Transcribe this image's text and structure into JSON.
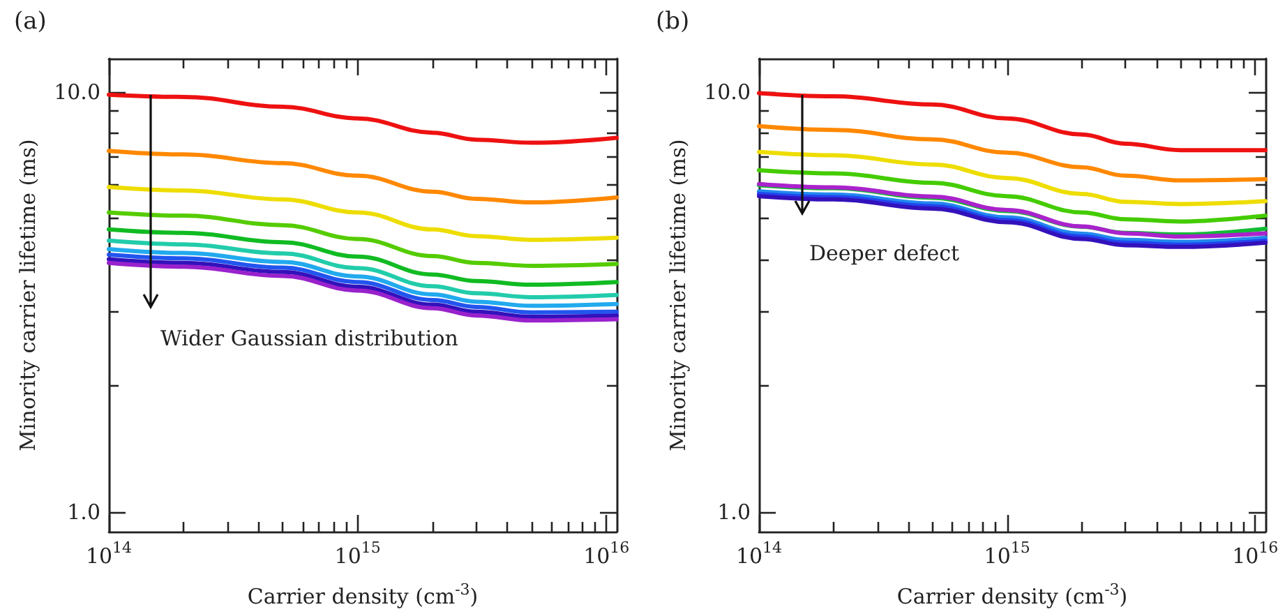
{
  "chart_data": [
    {
      "type": "line",
      "title": "(a)",
      "xlabel": "Carrier density (cm$^{-3}$)",
      "ylabel": "Minority carrier lifetime (ms)",
      "log": "xy",
      "marker": "none",
      "annotations": [
        "Wider Gaussian distribution"
      ],
      "xlim": [
        100000000000000.0,
        1.1e+16
      ],
      "ylim": [
        0.9,
        12
      ],
      "xticks": [
        {
          "value": 100000000000000.0,
          "label": "10$^{14}$"
        },
        {
          "value": 200000000000000.0,
          "label": null
        },
        {
          "value": 300000000000000.0,
          "label": null
        },
        {
          "value": 400000000000000.0,
          "label": null
        },
        {
          "value": 500000000000000.0,
          "label": null
        },
        {
          "value": 600000000000000.0,
          "label": null
        },
        {
          "value": 700000000000000.0,
          "label": null
        },
        {
          "value": 800000000000000.0,
          "label": null
        },
        {
          "value": 900000000000000.0,
          "label": null
        },
        {
          "value": 1000000000000000.0,
          "label": "10$^{15}$"
        },
        {
          "value": 2000000000000000.0,
          "label": null
        },
        {
          "value": 3000000000000000.0,
          "label": null
        },
        {
          "value": 4000000000000000.0,
          "label": null
        },
        {
          "value": 5000000000000000.0,
          "label": null
        },
        {
          "value": 6000000000000000.0,
          "label": null
        },
        {
          "value": 7000000000000000.0,
          "label": null
        },
        {
          "value": 8000000000000000.0,
          "label": null
        },
        {
          "value": 9000000000000000.0,
          "label": null
        },
        {
          "value": 1e+16,
          "label": "10$^{16}$"
        }
      ],
      "yticks": [
        {
          "value": 1,
          "label": "1.0"
        },
        {
          "value": 2,
          "label": null
        },
        {
          "value": 3,
          "label": null
        },
        {
          "value": 4,
          "label": null
        },
        {
          "value": 5,
          "label": null
        },
        {
          "value": 6,
          "label": null
        },
        {
          "value": 7,
          "label": null
        },
        {
          "value": 8,
          "label": null
        },
        {
          "value": 9,
          "label": null
        },
        {
          "value": 10,
          "label": "10.0"
        }
      ],
      "x": [
        100000000000000.0,
        200000000000000.0,
        500000000000000.0,
        1000000000000000.0,
        2000000000000000.0,
        3000000000000000.0,
        5000000000000000.0,
        1.1e+16
      ],
      "series": [
        {
          "color": "#ee1111",
          "values": [
            9.85,
            9.73,
            9.22,
            8.65,
            8.0,
            7.7,
            7.57,
            7.78
          ]
        },
        {
          "color": "#ff8800",
          "values": [
            7.24,
            7.1,
            6.77,
            6.32,
            5.79,
            5.57,
            5.46,
            5.61
          ]
        },
        {
          "color": "#eedd00",
          "values": [
            5.94,
            5.83,
            5.55,
            5.17,
            4.71,
            4.54,
            4.45,
            4.5
          ]
        },
        {
          "color": "#55cc00",
          "values": [
            5.17,
            5.08,
            4.82,
            4.47,
            4.07,
            3.92,
            3.86,
            3.9
          ]
        },
        {
          "color": "#11bb22",
          "values": [
            4.71,
            4.62,
            4.39,
            4.06,
            3.68,
            3.55,
            3.48,
            3.53
          ]
        },
        {
          "color": "#22ccaa",
          "values": [
            4.43,
            4.34,
            4.13,
            3.81,
            3.45,
            3.32,
            3.25,
            3.29
          ]
        },
        {
          "color": "#22aaee",
          "values": [
            4.23,
            4.14,
            3.94,
            3.64,
            3.3,
            3.17,
            3.1,
            3.13
          ]
        },
        {
          "color": "#2255ee",
          "values": [
            4.1,
            4.02,
            3.82,
            3.53,
            3.2,
            3.08,
            2.99,
            3.0
          ]
        },
        {
          "color": "#3311bb",
          "values": [
            4.0,
            3.92,
            3.73,
            3.44,
            3.12,
            3.0,
            2.92,
            2.94
          ]
        },
        {
          "color": "#9922cc",
          "values": [
            3.92,
            3.84,
            3.65,
            3.37,
            3.06,
            2.94,
            2.86,
            2.88
          ]
        }
      ]
    },
    {
      "type": "line",
      "title": "(b)",
      "xlabel": "Carrier density (cm$^{-3}$)",
      "ylabel": "Minority carrier lifetime (ms)",
      "log": "xy",
      "marker": "none",
      "annotations": [
        "Deeper defect"
      ],
      "xlim": [
        100000000000000.0,
        1.1e+16
      ],
      "ylim": [
        0.9,
        12
      ],
      "xticks": [
        {
          "value": 100000000000000.0,
          "label": "10$^{14}$"
        },
        {
          "value": 200000000000000.0,
          "label": null
        },
        {
          "value": 300000000000000.0,
          "label": null
        },
        {
          "value": 400000000000000.0,
          "label": null
        },
        {
          "value": 500000000000000.0,
          "label": null
        },
        {
          "value": 600000000000000.0,
          "label": null
        },
        {
          "value": 700000000000000.0,
          "label": null
        },
        {
          "value": 800000000000000.0,
          "label": null
        },
        {
          "value": 900000000000000.0,
          "label": null
        },
        {
          "value": 1000000000000000.0,
          "label": "10$^{15}$"
        },
        {
          "value": 2000000000000000.0,
          "label": null
        },
        {
          "value": 3000000000000000.0,
          "label": null
        },
        {
          "value": 4000000000000000.0,
          "label": null
        },
        {
          "value": 5000000000000000.0,
          "label": null
        },
        {
          "value": 6000000000000000.0,
          "label": null
        },
        {
          "value": 7000000000000000.0,
          "label": null
        },
        {
          "value": 8000000000000000.0,
          "label": null
        },
        {
          "value": 9000000000000000.0,
          "label": null
        },
        {
          "value": 1e+16,
          "label": "10$^{16}$"
        }
      ],
      "yticks": [
        {
          "value": 1,
          "label": "1.0"
        },
        {
          "value": 2,
          "label": null
        },
        {
          "value": 3,
          "label": null
        },
        {
          "value": 4,
          "label": null
        },
        {
          "value": 5,
          "label": null
        },
        {
          "value": 6,
          "label": null
        },
        {
          "value": 7,
          "label": null
        },
        {
          "value": 8,
          "label": null
        },
        {
          "value": 9,
          "label": null
        },
        {
          "value": 10,
          "label": "10.0"
        }
      ],
      "x": [
        100000000000000.0,
        200000000000000.0,
        500000000000000.0,
        1000000000000000.0,
        2000000000000000.0,
        3000000000000000.0,
        5000000000000000.0,
        1.1e+16
      ],
      "series": [
        {
          "color": "#ee1111",
          "values": [
            9.93,
            9.76,
            9.33,
            8.65,
            7.92,
            7.53,
            7.27,
            7.27
          ]
        },
        {
          "color": "#ff8800",
          "values": [
            8.29,
            8.12,
            7.71,
            7.17,
            6.62,
            6.32,
            6.16,
            6.2
          ]
        },
        {
          "color": "#eedd00",
          "values": [
            7.2,
            7.07,
            6.72,
            6.24,
            5.72,
            5.48,
            5.41,
            5.5
          ]
        },
        {
          "color": "#44cc00",
          "values": [
            6.51,
            6.4,
            6.08,
            5.65,
            5.17,
            4.98,
            4.92,
            5.08
          ]
        },
        {
          "color": "#11bb33",
          "values": [
            6.0,
            5.9,
            5.6,
            5.21,
            4.78,
            4.62,
            4.58,
            4.73
          ]
        },
        {
          "color": "#aa22cc",
          "values": [
            6.04,
            5.93,
            5.64,
            5.24,
            4.79,
            4.61,
            4.53,
            4.61
          ]
        },
        {
          "color": "#2288ee",
          "values": [
            5.8,
            5.7,
            5.43,
            5.03,
            4.6,
            4.45,
            4.4,
            4.5
          ]
        },
        {
          "color": "#2244ee",
          "values": [
            5.72,
            5.62,
            5.35,
            4.96,
            4.53,
            4.38,
            4.33,
            4.43
          ]
        },
        {
          "color": "#3311bb",
          "values": [
            5.65,
            5.55,
            5.28,
            4.9,
            4.47,
            4.32,
            4.28,
            4.38
          ]
        }
      ]
    }
  ]
}
